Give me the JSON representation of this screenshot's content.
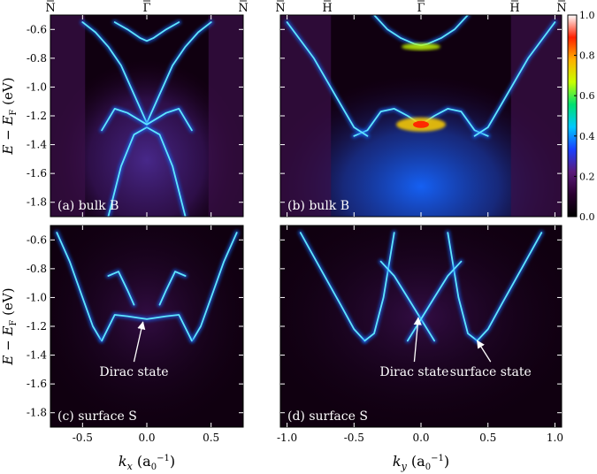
{
  "chart_data": {
    "type": "heatmap",
    "colorbar": {
      "min": 0.0,
      "max": 1.0,
      "ticks": [
        "0.0",
        "0.2",
        "0.4",
        "0.6",
        "0.8",
        "1.0"
      ],
      "colors": [
        "#000000",
        "#2a0030",
        "#5a1a7a",
        "#1a40ff",
        "#00c8ff",
        "#00e070",
        "#c8ff00",
        "#ffb000",
        "#ff2000",
        "#ffffff"
      ]
    },
    "ylabel_tokens": {
      "E": "E",
      "minus": " − ",
      "sub_E": "E",
      "sub_F": "F",
      "unit": " (eV)"
    },
    "yticks": [
      "-0.6",
      "-0.8",
      "-1.0",
      "-1.2",
      "-1.4",
      "-1.6",
      "-1.8"
    ],
    "yrange": [
      -1.9,
      -0.5
    ],
    "left_column": {
      "xlabel_tokens": {
        "k": "k",
        "sub": "x",
        "unit": " (a",
        "unit_sub": "0",
        "unit_sup": "−1",
        "close": ")"
      },
      "xticks": [
        "-0.5",
        "0.0",
        "0.5"
      ],
      "xrange": [
        -0.75,
        0.75
      ],
      "hs_points": [
        {
          "label": "N",
          "x": -0.75
        },
        {
          "label": "Γ",
          "x": 0.0
        },
        {
          "label": "N",
          "x": 0.75
        }
      ]
    },
    "right_column": {
      "xlabel_tokens": {
        "k": "k",
        "sub": "y",
        "unit": " (a",
        "unit_sub": "0",
        "unit_sup": "−1",
        "close": ")"
      },
      "xticks": [
        "-1.0",
        "-0.5",
        "0.0",
        "0.5",
        "1.0"
      ],
      "xrange": [
        -1.05,
        1.05
      ],
      "hs_points": [
        {
          "label": "N",
          "x": -1.05
        },
        {
          "label": "H",
          "x": -0.7
        },
        {
          "label": "Γ",
          "x": 0.0
        },
        {
          "label": "H",
          "x": 0.7
        },
        {
          "label": "N",
          "x": 1.05
        }
      ]
    },
    "panels": [
      {
        "label": "(a) bulk B",
        "kind": "bulk",
        "column": "left",
        "bands": [
          {
            "x": [
              -0.5,
              -0.4,
              -0.3,
              -0.2,
              -0.1,
              0.0,
              0.1,
              0.2,
              0.3,
              0.4,
              0.5
            ],
            "y": [
              -0.55,
              -0.62,
              -0.72,
              -0.85,
              -1.05,
              -1.25,
              -1.05,
              -0.85,
              -0.72,
              -0.62,
              -0.55
            ]
          },
          {
            "x": [
              -0.3,
              -0.2,
              -0.1,
              0.0,
              0.1,
              0.2,
              0.3
            ],
            "y": [
              -1.9,
              -1.55,
              -1.33,
              -1.28,
              -1.33,
              -1.55,
              -1.9
            ]
          },
          {
            "x": [
              -0.35,
              -0.25,
              -0.15,
              0.0,
              0.15,
              0.25,
              0.35
            ],
            "y": [
              -1.3,
              -1.15,
              -1.18,
              -1.26,
              -1.18,
              -1.15,
              -1.3
            ]
          },
          {
            "x": [
              -0.25,
              -0.15,
              -0.05,
              0.0,
              0.05,
              0.15,
              0.25
            ],
            "y": [
              -0.55,
              -0.6,
              -0.66,
              -0.68,
              -0.66,
              -0.6,
              -0.55
            ]
          }
        ]
      },
      {
        "label": "(b) bulk B",
        "kind": "bulk",
        "column": "right",
        "bands": [
          {
            "x": [
              -0.35,
              -0.25,
              -0.15,
              -0.05,
              0.0,
              0.05,
              0.15,
              0.25,
              0.35
            ],
            "y": [
              -0.5,
              -0.6,
              -0.66,
              -0.7,
              -0.71,
              -0.7,
              -0.66,
              -0.6,
              -0.5
            ]
          },
          {
            "x": [
              -0.5,
              -0.4,
              -0.3,
              -0.2,
              -0.1,
              0.0,
              0.1,
              0.2,
              0.3,
              0.4,
              0.5
            ],
            "y": [
              -1.34,
              -1.3,
              -1.17,
              -1.15,
              -1.2,
              -1.26,
              -1.2,
              -1.15,
              -1.17,
              -1.3,
              -1.34
            ]
          },
          {
            "x": [
              -1.0,
              -0.8,
              -0.6,
              -0.5,
              -0.4
            ],
            "y": [
              -0.55,
              -0.8,
              -1.12,
              -1.28,
              -1.34
            ]
          },
          {
            "x": [
              0.4,
              0.5,
              0.6,
              0.8,
              1.0
            ],
            "y": [
              -1.34,
              -1.28,
              -1.12,
              -0.8,
              -0.55
            ]
          }
        ]
      },
      {
        "label": "(c) surface S",
        "kind": "surface",
        "column": "left",
        "annotations": [
          {
            "text": "Dirac state",
            "tx": -0.1,
            "ty": -1.52,
            "ax": -0.03,
            "ay": -1.17
          }
        ],
        "bands": [
          {
            "x": [
              -0.7,
              -0.6,
              -0.5,
              -0.42,
              -0.36
            ],
            "y": [
              -0.55,
              -0.75,
              -1.0,
              -1.2,
              -1.29
            ]
          },
          {
            "x": [
              0.36,
              0.42,
              0.5,
              0.6,
              0.7
            ],
            "y": [
              -1.29,
              -1.2,
              -1.0,
              -0.75,
              -0.55
            ]
          },
          {
            "x": [
              -0.35,
              -0.25,
              -0.15,
              0.0,
              0.15,
              0.25,
              0.35
            ],
            "y": [
              -1.3,
              -1.12,
              -1.13,
              -1.15,
              -1.13,
              -1.12,
              -1.3
            ]
          },
          {
            "x": [
              -0.3,
              -0.22,
              -0.15,
              -0.1
            ],
            "y": [
              -0.85,
              -0.82,
              -0.95,
              -1.05
            ]
          },
          {
            "x": [
              0.1,
              0.15,
              0.22,
              0.3
            ],
            "y": [
              -1.05,
              -0.95,
              -0.82,
              -0.85
            ]
          }
        ]
      },
      {
        "label": "(d) surface S",
        "kind": "surface",
        "column": "right",
        "annotations": [
          {
            "text": "Dirac state",
            "tx": -0.05,
            "ty": -1.52,
            "ax": -0.02,
            "ay": -1.14
          },
          {
            "text": "surface state",
            "tx": 0.52,
            "ty": -1.52,
            "ax": 0.42,
            "ay": -1.3
          }
        ],
        "bands": [
          {
            "x": [
              -0.9,
              -0.75,
              -0.6,
              -0.5,
              -0.42
            ],
            "y": [
              -0.55,
              -0.8,
              -1.05,
              -1.22,
              -1.3
            ]
          },
          {
            "x": [
              -0.42,
              -0.35,
              -0.28,
              -0.2
            ],
            "y": [
              -1.3,
              -1.25,
              -1.0,
              -0.55
            ]
          },
          {
            "x": [
              0.2,
              0.28,
              0.35,
              0.42
            ],
            "y": [
              -0.55,
              -1.0,
              -1.25,
              -1.3
            ]
          },
          {
            "x": [
              0.42,
              0.5,
              0.6,
              0.75,
              0.9
            ],
            "y": [
              -1.3,
              -1.22,
              -1.05,
              -0.8,
              -0.55
            ]
          },
          {
            "x": [
              -0.3,
              -0.2,
              -0.1,
              0.0,
              0.1
            ],
            "y": [
              -0.75,
              -0.85,
              -1.0,
              -1.15,
              -1.3
            ]
          },
          {
            "x": [
              -0.1,
              0.0,
              0.1,
              0.2,
              0.3
            ],
            "y": [
              -1.3,
              -1.15,
              -1.0,
              -0.85,
              -0.75
            ]
          }
        ]
      }
    ]
  }
}
